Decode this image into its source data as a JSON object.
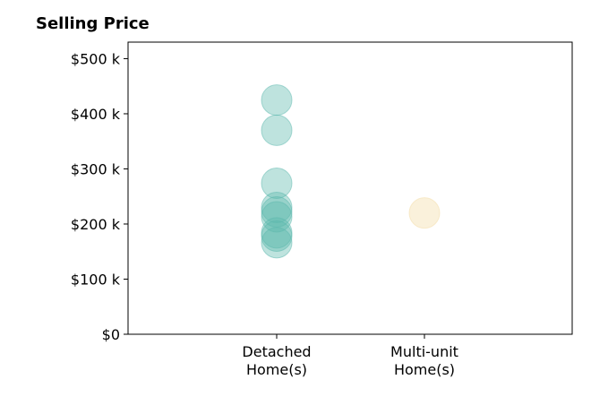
{
  "chart_data": {
    "type": "scatter",
    "title": "Selling Price",
    "xlabel": "",
    "ylabel": "",
    "categories": [
      "Detached\nHome(s)",
      "Multi-unit\nHome(s)"
    ],
    "ylim": [
      0,
      530000
    ],
    "y_ticks": [
      0,
      100000,
      200000,
      300000,
      400000,
      500000
    ],
    "y_tick_labels": [
      "$0",
      "$100 k",
      "$200 k",
      "$300 k",
      "$400 k",
      "$500 k"
    ],
    "grid": false,
    "series": [
      {
        "category": "Detached\nHome(s)",
        "color": "#5cb8ad",
        "values": [
          425000,
          370000,
          274000,
          230000,
          222000,
          213000,
          184000,
          178000,
          166000
        ]
      },
      {
        "category": "Multi-unit\nHome(s)",
        "color": "#f3dca6",
        "values": [
          220000
        ]
      }
    ]
  }
}
